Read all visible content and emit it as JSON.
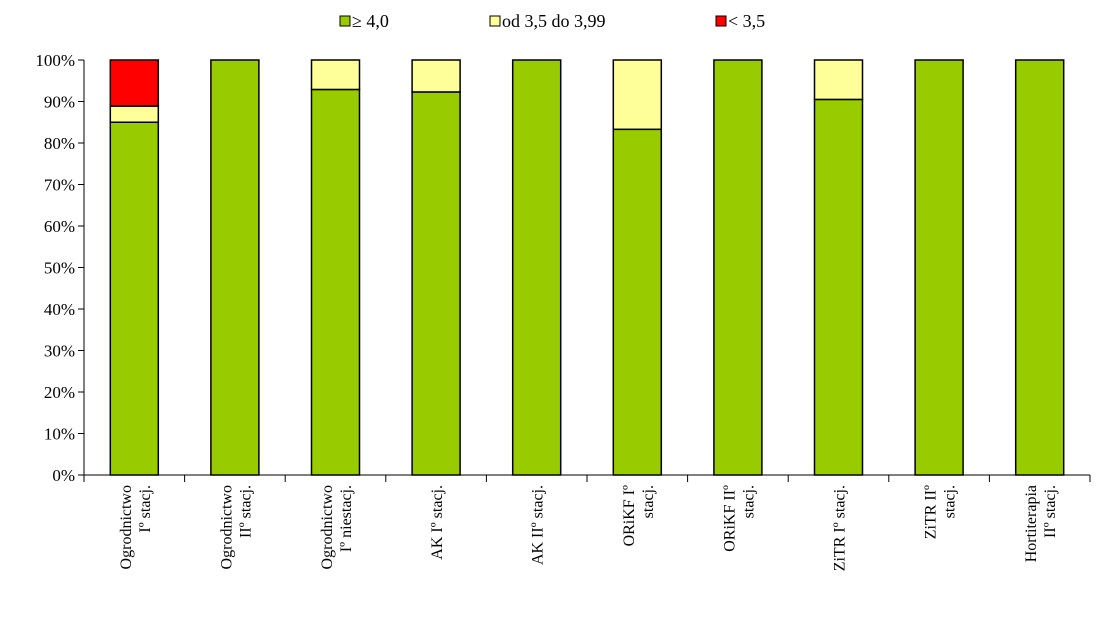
{
  "chart_data": {
    "type": "bar",
    "stacked": true,
    "percent": true,
    "title": "",
    "xlabel": "",
    "ylabel": "",
    "ylim": [
      0,
      100
    ],
    "yticks": [
      "0%",
      "10%",
      "20%",
      "30%",
      "40%",
      "50%",
      "60%",
      "70%",
      "80%",
      "90%",
      "100%"
    ],
    "grid": false,
    "legend_position": "top",
    "categories": [
      [
        "Ogrodnictwo",
        "Iº  stacj."
      ],
      [
        "Ogrodnictwo",
        "IIº stacj."
      ],
      [
        "Ogrodnictwo",
        "Iº niestacj."
      ],
      [
        "AK Iº stacj."
      ],
      [
        "AK IIº stacj."
      ],
      [
        "ORiKF  Iº",
        "stacj."
      ],
      [
        "ORiKF  IIº",
        "stacj."
      ],
      [
        "ZiTR  Iº stacj."
      ],
      [
        "ZiTR  IIº",
        "stacj."
      ],
      [
        "Hortiterapia",
        "IIº stacj."
      ]
    ],
    "series": [
      {
        "name": "≥ 4,0",
        "color": "#99cc00",
        "values": [
          85,
          100,
          92.9,
          92.3,
          100,
          83.3,
          100,
          90.5,
          100,
          100
        ]
      },
      {
        "name": "od 3,5 do 3,99",
        "color": "#ffff99",
        "values": [
          3.9,
          0,
          7.1,
          7.7,
          0,
          16.7,
          0,
          9.5,
          0,
          0
        ]
      },
      {
        "name": "< 3,5",
        "color": "#ff0000",
        "values": [
          11.1,
          0,
          0,
          0,
          0,
          0,
          0,
          0,
          0,
          0
        ]
      }
    ]
  }
}
